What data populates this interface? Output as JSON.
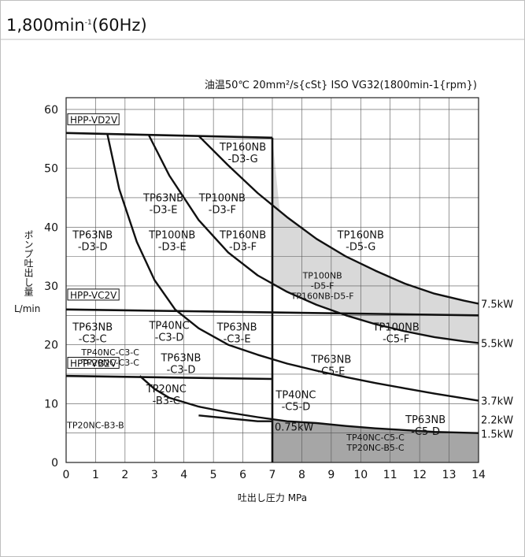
{
  "header": {
    "title": "1,800min-1(60Hz)",
    "title_main": "1,800min",
    "title_sup": "-1",
    "title_tail": "(60Hz)"
  },
  "chart_data": {
    "type": "line",
    "title": "油温50℃ 20mm²/s{cSt} ISO VG32(1800min-1{rpm})",
    "xlabel": "吐出し圧力 MPa",
    "ylabel": "ポンプ吐出し量",
    "yunit": "L/min",
    "xlim": [
      0,
      14
    ],
    "ylim": [
      0,
      62
    ],
    "xticks": [
      0,
      1,
      2,
      3,
      4,
      5,
      6,
      7,
      8,
      9,
      10,
      11,
      12,
      13,
      14
    ],
    "yticks": [
      0,
      10,
      20,
      30,
      40,
      50,
      60
    ],
    "grid": true,
    "pump_limits": [
      {
        "name": "HPP-VD2V",
        "points": [
          [
            0,
            56.0
          ],
          [
            7,
            55.2
          ]
        ]
      },
      {
        "name": "HPP-VC2V",
        "points": [
          [
            0,
            26.0
          ],
          [
            14,
            25.0
          ]
        ]
      },
      {
        "name": "HPP-VB2V",
        "points": [
          [
            0,
            14.7
          ],
          [
            7,
            14.2
          ]
        ]
      }
    ],
    "pressure_limit": {
      "x": 7,
      "ymin": 0,
      "ymax": 55.2
    },
    "power_curves": [
      {
        "name": "7.5kW",
        "points": [
          [
            4.5,
            55.5
          ],
          [
            5.5,
            50.5
          ],
          [
            6.5,
            45.8
          ],
          [
            7.5,
            41.7
          ],
          [
            8.5,
            38.0
          ],
          [
            9.5,
            35.0
          ],
          [
            10.5,
            32.6
          ],
          [
            11.5,
            30.4
          ],
          [
            12.5,
            28.7
          ],
          [
            13.5,
            27.5
          ],
          [
            14,
            27.0
          ]
        ]
      },
      {
        "name": "5.5kW",
        "points": [
          [
            2.8,
            55.7
          ],
          [
            3.5,
            48.8
          ],
          [
            4.5,
            41.2
          ],
          [
            5.5,
            35.7
          ],
          [
            6.5,
            31.8
          ],
          [
            7.5,
            29.0
          ],
          [
            8.5,
            26.8
          ],
          [
            9.5,
            25.0
          ],
          [
            10.5,
            23.5
          ],
          [
            11.5,
            22.3
          ],
          [
            12.5,
            21.3
          ],
          [
            13.5,
            20.6
          ],
          [
            14,
            20.3
          ]
        ]
      },
      {
        "name": "3.7kW",
        "points": [
          [
            1.4,
            55.8
          ],
          [
            1.8,
            46.5
          ],
          [
            2.4,
            37.5
          ],
          [
            3.0,
            31.0
          ],
          [
            3.7,
            26.0
          ],
          [
            4.5,
            22.8
          ],
          [
            5.5,
            20.0
          ],
          [
            6.5,
            18.3
          ],
          [
            7.5,
            16.8
          ],
          [
            8.5,
            15.6
          ],
          [
            9.5,
            14.5
          ],
          [
            10.5,
            13.5
          ],
          [
            11.5,
            12.6
          ],
          [
            12.5,
            11.7
          ],
          [
            13.5,
            10.9
          ],
          [
            14,
            10.5
          ]
        ]
      },
      {
        "name": "2.2kW",
        "points": [
          [
            2.5,
            14.7
          ],
          [
            3.0,
            12.5
          ],
          [
            3.5,
            11.0
          ],
          [
            4.5,
            9.5
          ],
          [
            5.5,
            8.5
          ],
          [
            6.5,
            7.7
          ],
          [
            7.5,
            7.0
          ],
          [
            8.5,
            6.7
          ],
          [
            9.5,
            6.2
          ],
          [
            10.5,
            5.8
          ],
          [
            11.5,
            5.5
          ],
          [
            12.5,
            5.2
          ],
          [
            14,
            5.0
          ]
        ]
      },
      {
        "name": "0.75kW",
        "points": [
          [
            4.5,
            8.0
          ],
          [
            5.5,
            7.5
          ],
          [
            6.5,
            7.0
          ],
          [
            7,
            7.0
          ]
        ]
      },
      {
        "name": "1.5kW",
        "points": [
          [
            14,
            5.0
          ]
        ]
      }
    ],
    "power_labels": [
      "7.5kW",
      "5.5kW",
      "3.7kW",
      "2.2kW",
      "1.5kW",
      "0.75kW"
    ],
    "shaded_regions": [
      {
        "name": "TP160NB-D5-G",
        "shade": "light",
        "color": "#d9d9d9"
      },
      {
        "name": "TP100NB-C5-F",
        "shade": "light",
        "color": "#d9d9d9"
      },
      {
        "name": "TP40NC-C5-C / TP20NC-B5-C",
        "shade": "dark",
        "color": "#a6a6a6"
      }
    ],
    "pump_labels": [
      "HPP-VD2V",
      "HPP-VC2V",
      "HPP-VB2V"
    ],
    "region_labels": [
      {
        "lines": [
          "TP160NB",
          "-D3-G"
        ],
        "x": 6.0,
        "y": 52.6
      },
      {
        "lines": [
          "TP63NB",
          "-D3-E"
        ],
        "x": 3.3,
        "y": 44.0
      },
      {
        "lines": [
          "TP100NB",
          "-D3-F"
        ],
        "x": 5.3,
        "y": 44.0
      },
      {
        "lines": [
          "TP63NB",
          "-D3-D"
        ],
        "x": 0.9,
        "y": 37.7
      },
      {
        "lines": [
          "TP100NB",
          "-D3-E"
        ],
        "x": 3.6,
        "y": 37.7
      },
      {
        "lines": [
          "TP160NB",
          "-D3-F"
        ],
        "x": 6.0,
        "y": 37.7
      },
      {
        "lines": [
          "TP160NB",
          "-D5-G"
        ],
        "x": 10.0,
        "y": 37.7
      },
      {
        "lines": [
          "TP100NB",
          "-D5-F",
          "TP160NB-D5-F"
        ],
        "x": 8.7,
        "y": 30.0
      },
      {
        "lines": [
          "TP63NB",
          "-C3-C"
        ],
        "x": 0.9,
        "y": 22.0
      },
      {
        "lines": [
          "TP40NC",
          "-C3-D"
        ],
        "x": 3.5,
        "y": 22.3
      },
      {
        "lines": [
          "TP63NB",
          "-C3-E"
        ],
        "x": 5.8,
        "y": 22.0
      },
      {
        "lines": [
          "TP100NB",
          "-C5-F"
        ],
        "x": 11.2,
        "y": 22.0
      },
      {
        "lines": [
          "TP40NC-C3-C",
          "TP20NC-C3-C"
        ],
        "x": 1.5,
        "y": 17.8
      },
      {
        "lines": [
          "TP63NB",
          "-C3-D"
        ],
        "x": 3.9,
        "y": 16.8
      },
      {
        "lines": [
          "TP63NB",
          "-C5-E"
        ],
        "x": 9.0,
        "y": 16.5
      },
      {
        "lines": [
          "TP20NC",
          "-B3-C"
        ],
        "x": 3.4,
        "y": 11.5
      },
      {
        "lines": [
          "TP40NC",
          "-C5-D"
        ],
        "x": 7.8,
        "y": 10.5
      },
      {
        "lines": [
          "TP63NB",
          "-C5-D"
        ],
        "x": 12.2,
        "y": 6.3
      },
      {
        "lines": [
          "TP20NC-B3-B"
        ],
        "x": 1.0,
        "y": 6.3
      },
      {
        "lines": [
          "TP40NC-C5-C",
          "TP20NC-B5-C"
        ],
        "x": 10.5,
        "y": 3.4
      }
    ]
  }
}
